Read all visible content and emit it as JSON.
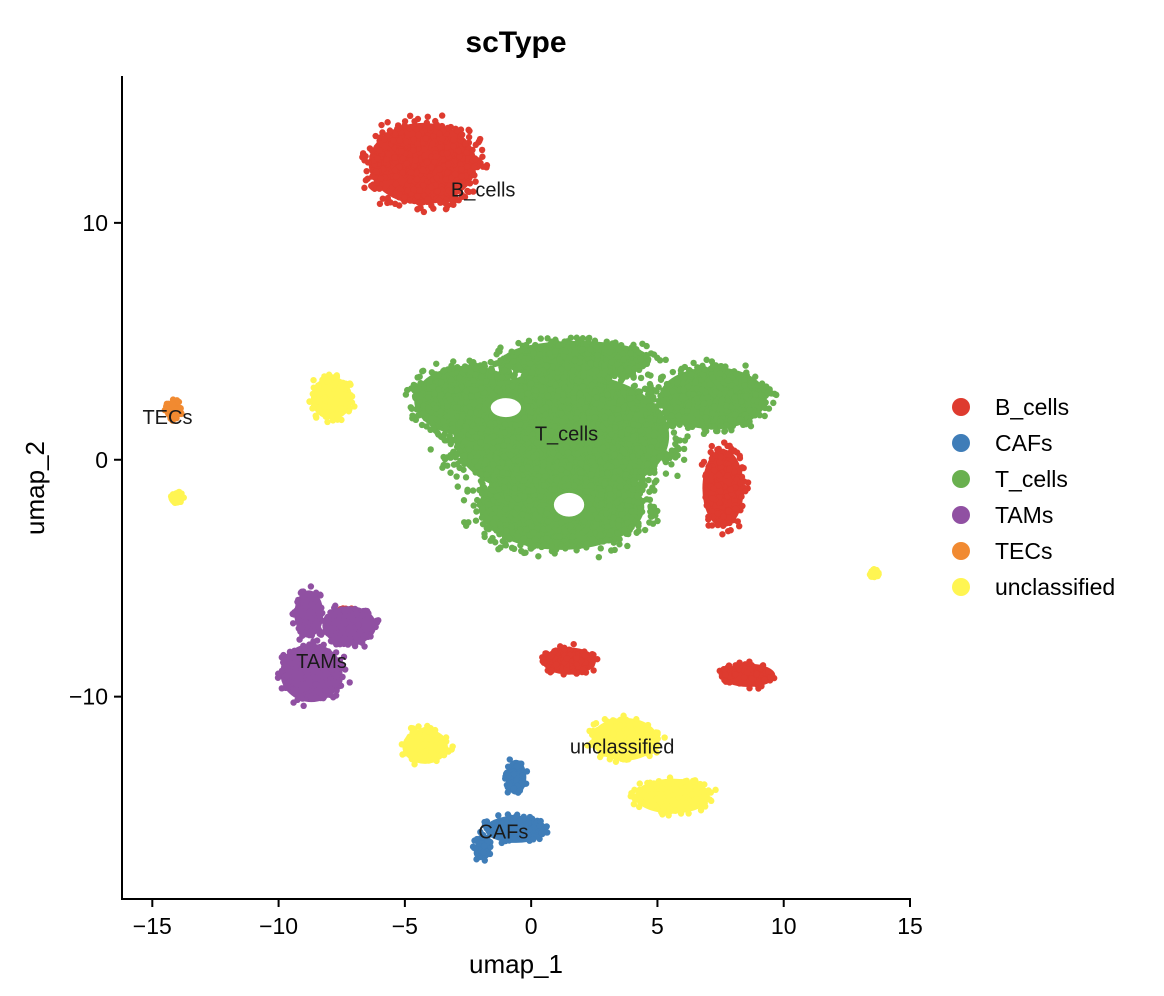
{
  "chart_data": {
    "type": "scatter",
    "title": "scType",
    "xlabel": "umap_1",
    "ylabel": "umap_2",
    "xlim": [
      -16.2,
      15
    ],
    "ylim": [
      -18.5,
      16.2
    ],
    "xticks": [
      -15,
      -10,
      -5,
      0,
      5,
      10,
      15
    ],
    "xtick_labels": [
      "−15",
      "−10",
      "−5",
      "0",
      "5",
      "10",
      "15"
    ],
    "yticks": [
      -10,
      0,
      10
    ],
    "ytick_labels": [
      "−10",
      "0",
      "10"
    ],
    "grid": false,
    "legend_position": "right",
    "series": [
      {
        "name": "B_cells",
        "color": "#DE3B2F",
        "clusters": [
          {
            "cx": -4.3,
            "cy": 12.5,
            "rx": 2.6,
            "ry": 2.1
          },
          {
            "cx": 7.6,
            "cy": -1.2,
            "rx": 1.0,
            "ry": 2.0
          },
          {
            "cx": 1.5,
            "cy": -8.5,
            "rx": 1.3,
            "ry": 0.7
          },
          {
            "cx": 8.6,
            "cy": -9.1,
            "rx": 1.3,
            "ry": 0.6
          },
          {
            "cx": -7.2,
            "cy": -6.5,
            "rx": 0.6,
            "ry": 0.3
          }
        ],
        "labels": [
          {
            "text": "B_cells",
            "x": -1.9,
            "y": 11.4
          }
        ]
      },
      {
        "name": "CAFs",
        "color": "#3F7DB8",
        "clusters": [
          {
            "cx": -0.6,
            "cy": -15.6,
            "rx": 1.5,
            "ry": 0.7
          },
          {
            "cx": -0.6,
            "cy": -13.4,
            "rx": 0.5,
            "ry": 0.9
          },
          {
            "cx": -1.9,
            "cy": -16.4,
            "rx": 0.4,
            "ry": 0.6
          }
        ],
        "labels": [
          {
            "text": "CAFs",
            "x": -1.1,
            "y": -15.7
          }
        ]
      },
      {
        "name": "T_cells",
        "color": "#69B04F",
        "clusters": [
          {
            "cx": 1.2,
            "cy": 1.0,
            "rx": 5.2,
            "ry": 3.3
          },
          {
            "cx": 1.2,
            "cy": -2.0,
            "rx": 4.0,
            "ry": 2.2
          },
          {
            "cx": -2.5,
            "cy": 2.5,
            "rx": 2.6,
            "ry": 1.8
          },
          {
            "cx": 7.2,
            "cy": 2.6,
            "rx": 2.6,
            "ry": 1.6
          },
          {
            "cx": 1.8,
            "cy": 4.2,
            "rx": 3.6,
            "ry": 1.0
          }
        ],
        "labels": [
          {
            "text": "T_cells",
            "x": 1.4,
            "y": 1.1
          }
        ]
      },
      {
        "name": "TAMs",
        "color": "#9050A2",
        "clusters": [
          {
            "cx": -8.7,
            "cy": -9.0,
            "rx": 1.5,
            "ry": 1.5
          },
          {
            "cx": -8.8,
            "cy": -6.5,
            "rx": 0.7,
            "ry": 1.2
          },
          {
            "cx": -7.2,
            "cy": -7.0,
            "rx": 1.3,
            "ry": 1.0
          }
        ],
        "labels": [
          {
            "text": "TAMs",
            "x": -8.3,
            "y": -8.5
          }
        ]
      },
      {
        "name": "TECs",
        "color": "#F18A31",
        "clusters": [
          {
            "cx": -14.2,
            "cy": 2.1,
            "rx": 0.4,
            "ry": 0.5
          }
        ],
        "labels": [
          {
            "text": "TECs",
            "x": -14.4,
            "y": 1.8
          }
        ]
      },
      {
        "name": "unclassified",
        "color": "#FFF552",
        "clusters": [
          {
            "cx": -7.9,
            "cy": 2.6,
            "rx": 1.0,
            "ry": 1.1
          },
          {
            "cx": -4.2,
            "cy": -12.1,
            "rx": 1.1,
            "ry": 0.9
          },
          {
            "cx": 3.7,
            "cy": -11.8,
            "rx": 1.6,
            "ry": 1.1
          },
          {
            "cx": 5.6,
            "cy": -14.2,
            "rx": 1.8,
            "ry": 0.9
          },
          {
            "cx": -14.0,
            "cy": -1.6,
            "rx": 0.3,
            "ry": 0.3
          },
          {
            "cx": 13.6,
            "cy": -4.8,
            "rx": 0.2,
            "ry": 0.2
          }
        ],
        "labels": [
          {
            "text": "unclassified",
            "x": 3.6,
            "y": -12.1
          }
        ]
      }
    ]
  }
}
